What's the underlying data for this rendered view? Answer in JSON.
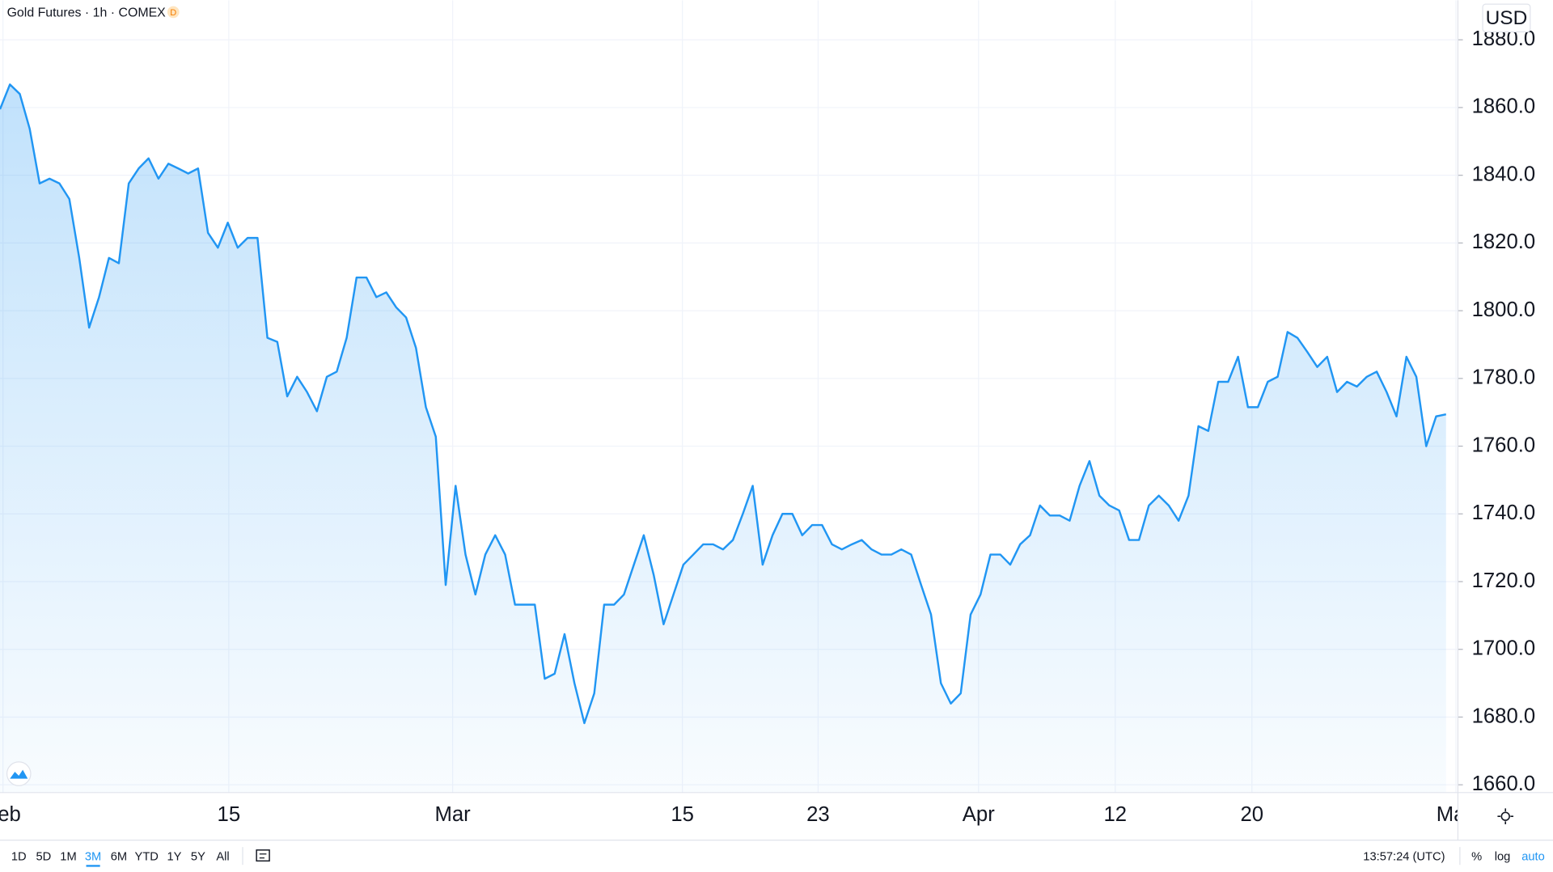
{
  "chart_data": {
    "type": "area",
    "title": "Gold Futures · 1h · COMEX",
    "badge": "D",
    "currency": "USD",
    "color": "#2196f3",
    "grid": true,
    "values": [
      1859.5,
      1866.8,
      1864,
      1853.7,
      1837.6,
      1839,
      1837.6,
      1833,
      1815.6,
      1795,
      1804,
      1815.6,
      1814,
      1837.6,
      1842,
      1845,
      1839,
      1843.4,
      1842,
      1840.5,
      1842,
      1823,
      1818.6,
      1826,
      1818.6,
      1821.5,
      1821.5,
      1792,
      1790.8,
      1774.7,
      1780.5,
      1776,
      1770.3,
      1780.5,
      1782,
      1792,
      1809.8,
      1809.8,
      1804,
      1805.4,
      1801,
      1798,
      1789,
      1771.5,
      1762.8,
      1719,
      1748.3,
      1728,
      1716.2,
      1728,
      1733.7,
      1728,
      1713.2,
      1713.2,
      1713.2,
      1691.3,
      1692.8,
      1704.5,
      1690,
      1678.2,
      1687,
      1713.2,
      1713.2,
      1716.2,
      1725,
      1733.7,
      1722,
      1707.4,
      1716.2,
      1725,
      1728,
      1731,
      1731,
      1729.5,
      1732.3,
      1740,
      1748.3,
      1725,
      1733.7,
      1740,
      1740,
      1733.7,
      1736.7,
      1736.7,
      1731,
      1729.5,
      1731,
      1732.3,
      1729.5,
      1728,
      1728,
      1729.5,
      1728,
      1719,
      1710.3,
      1690,
      1684,
      1687,
      1710.3,
      1716.2,
      1728,
      1728,
      1725,
      1731,
      1733.7,
      1742.5,
      1739.5,
      1739.5,
      1738,
      1748.3,
      1755.6,
      1745.4,
      1742.5,
      1741,
      1732.3,
      1732.3,
      1742.5,
      1745.4,
      1742.5,
      1738,
      1745.4,
      1765.9,
      1764.5,
      1779,
      1779,
      1786.4,
      1771.5,
      1771.5,
      1779,
      1780.5,
      1793.7,
      1792,
      1787.8,
      1783.4,
      1786.4,
      1776,
      1779,
      1777.6,
      1780.5,
      1782,
      1776,
      1768.8,
      1786.4,
      1780.5,
      1760,
      1768.8,
      1769.4
    ],
    "xlim": [
      0,
      147.2
    ],
    "xticks": [
      {
        "value": 0.3,
        "label": "Feb"
      },
      {
        "value": 23.1,
        "label": "15"
      },
      {
        "value": 45.7,
        "label": "Mar"
      },
      {
        "value": 68.9,
        "label": "15"
      },
      {
        "value": 82.6,
        "label": "23"
      },
      {
        "value": 98.8,
        "label": "Apr"
      },
      {
        "value": 112.6,
        "label": "12"
      },
      {
        "value": 126.4,
        "label": "20"
      },
      {
        "value": 147.0,
        "label": "May"
      }
    ],
    "ylim": [
      1657.7,
      1891.7
    ],
    "yticks": [
      {
        "value": 1660,
        "label": "1660.0"
      },
      {
        "value": 1680,
        "label": "1680.0"
      },
      {
        "value": 1700,
        "label": "1700.0"
      },
      {
        "value": 1720,
        "label": "1720.0"
      },
      {
        "value": 1740,
        "label": "1740.0"
      },
      {
        "value": 1760,
        "label": "1760.0"
      },
      {
        "value": 1780,
        "label": "1780.0"
      },
      {
        "value": 1800,
        "label": "1800.0"
      },
      {
        "value": 1820,
        "label": "1820.0"
      },
      {
        "value": 1840,
        "label": "1840.0"
      },
      {
        "value": 1860,
        "label": "1860.0"
      },
      {
        "value": 1880,
        "label": "1880.0"
      }
    ]
  },
  "toolbar": {
    "ranges": [
      "1D",
      "5D",
      "1M",
      "3M",
      "6M",
      "YTD",
      "1Y",
      "5Y",
      "All"
    ],
    "active": "3M",
    "clock": "13:57:24 (UTC)",
    "scale_buttons": [
      "%",
      "log",
      "auto"
    ]
  }
}
